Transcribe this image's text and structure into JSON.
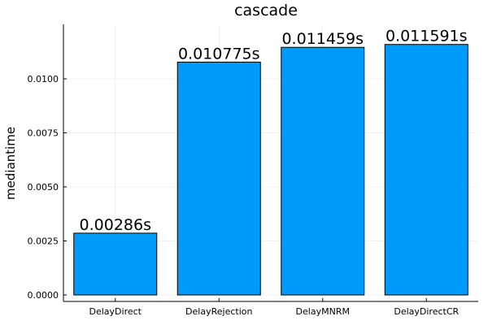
{
  "chart_data": {
    "type": "bar",
    "title": "cascade",
    "xlabel": "",
    "ylabel": "mediantime",
    "categories": [
      "DelayDirect",
      "DelayRejection",
      "DelayMNRM",
      "DelayDirectCR"
    ],
    "values": [
      0.00286,
      0.010775,
      0.011459,
      0.011591
    ],
    "data_labels": [
      "0.00286s",
      "0.010775s",
      "0.011459s",
      "0.011591s"
    ],
    "yticks": [
      0,
      0.0025,
      0.005,
      0.0075,
      0.01
    ],
    "ytick_labels": [
      "0.0000",
      "0.0025",
      "0.0050",
      "0.0075",
      "0.0100"
    ],
    "ylim": [
      -0.0003,
      0.01252
    ],
    "grid": true,
    "legend": "none",
    "bar_color": "#009af9"
  }
}
